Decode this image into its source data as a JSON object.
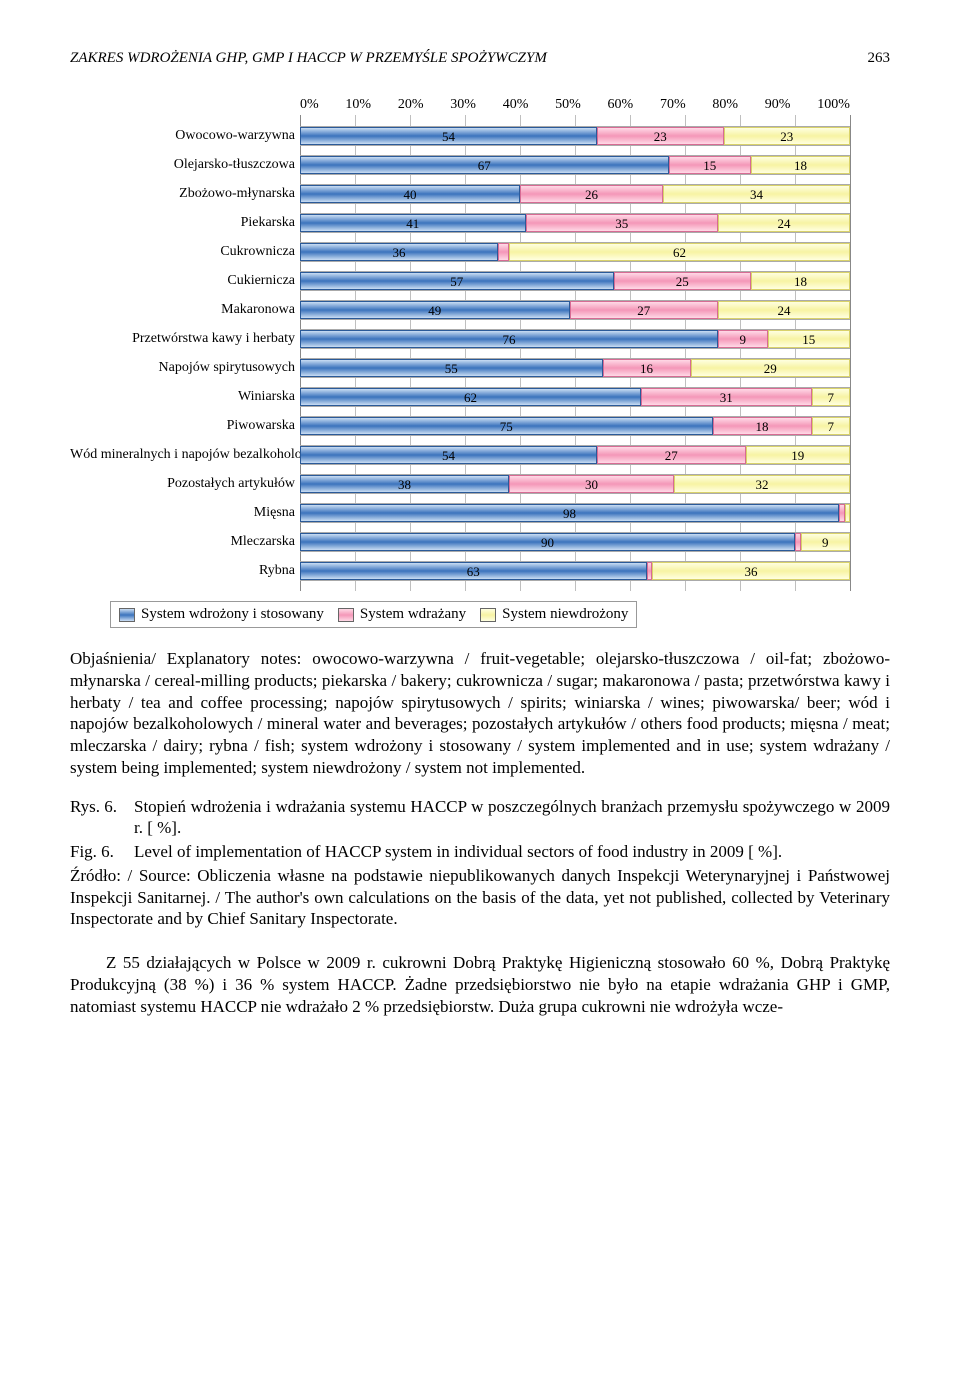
{
  "page": {
    "running_title": "ZAKRES WDROŻENIA GHP, GMP I HACCP W PRZEMYŚLE SPOŻYWCZYM",
    "page_number": "263"
  },
  "chart": {
    "type": "stacked-bar-horizontal",
    "x_ticks": [
      "0%",
      "10%",
      "20%",
      "30%",
      "40%",
      "50%",
      "60%",
      "70%",
      "80%",
      "90%",
      "100%"
    ],
    "series": [
      {
        "key": "blue",
        "label": "System wdrożony i stosowany"
      },
      {
        "key": "pink",
        "label": "System wdrażany"
      },
      {
        "key": "yellow",
        "label": "System niewdrożony"
      }
    ],
    "categories": [
      {
        "label": "Owocowo-warzywna",
        "v": [
          54,
          23,
          23
        ]
      },
      {
        "label": "Olejarsko-tłuszczowa",
        "v": [
          67,
          15,
          18
        ]
      },
      {
        "label": "Zbożowo-młynarska",
        "v": [
          40,
          26,
          34
        ]
      },
      {
        "label": "Piekarska",
        "v": [
          41,
          35,
          24
        ]
      },
      {
        "label": "Cukrownicza",
        "v": [
          36,
          2,
          62
        ]
      },
      {
        "label": "Cukiernicza",
        "v": [
          57,
          25,
          18
        ]
      },
      {
        "label": "Makaronowa",
        "v": [
          49,
          27,
          24
        ]
      },
      {
        "label": "Przetwórstwa kawy i herbaty",
        "v": [
          76,
          9,
          15
        ]
      },
      {
        "label": "Napojów spirytusowych",
        "v": [
          55,
          16,
          29
        ]
      },
      {
        "label": "Winiarska",
        "v": [
          62,
          31,
          7
        ]
      },
      {
        "label": "Piwowarska",
        "v": [
          75,
          18,
          7
        ]
      },
      {
        "label": "Wód mineralnych i napojów bezalkoholowych",
        "v": [
          54,
          27,
          19
        ]
      },
      {
        "label": "Pozostałych artykułów",
        "v": [
          38,
          30,
          32
        ]
      },
      {
        "label": "Mięsna",
        "v": [
          98,
          1,
          1
        ]
      },
      {
        "label": "Mleczarska",
        "v": [
          90,
          1,
          9
        ]
      },
      {
        "label": "Rybna",
        "v": [
          63,
          1,
          36
        ]
      }
    ],
    "colors": {
      "blue": "#3b73bd",
      "pink": "#f497b8",
      "yellow": "#f7f3a3"
    },
    "grid_color": "#bfbfbf",
    "background": "#ffffff"
  },
  "explanatory": "Objaśnienia/ Explanatory notes: owocowo-warzywna / fruit-vegetable; olejarsko-tłuszczowa / oil-fat; zbożowo-młynarska / cereal-milling products; piekarska / bakery; cukrownicza / sugar; makaronowa / pasta; przetwórstwa kawy i herbaty / tea and coffee processing; napojów spirytusowych / spirits; winiarska / wines; piwowarska/ beer; wód i napojów bezalkoholowych / mineral water and beverages; pozostałych artykułów / others food products; mięsna / meat; mleczarska / dairy; rybna / fish; system wdrożony i stosowany / system implemented and in use; system wdrażany / system being implemented; system niewdrożony / system not implemented.",
  "captions": {
    "rys_label": "Rys. 6.",
    "rys_text": "Stopień wdrożenia i wdrażania systemu HACCP w poszczególnych branżach przemysłu spożywczego w 2009 r. [ %].",
    "fig_label": "Fig. 6.",
    "fig_text": "Level of implementation of HACCP system in individual sectors of food industry in 2009 [ %].",
    "source": "Źródło: / Source: Obliczenia własne na podstawie niepublikowanych danych Inspekcji Weterynaryjnej i Państwowej Inspekcji Sanitarnej. / The author's own calculations on the basis of the data, yet not published, collected by Veterinary Inspectorate and by Chief Sanitary Inspectorate."
  },
  "body_para": "Z 55 działających w Polsce w 2009 r. cukrowni Dobrą Praktykę Higieniczną stosowało 60 %, Dobrą Praktykę Produkcyjną (38 %) i 36 % system HACCP. Żadne przedsiębiorstwo nie było na etapie wdrażania GHP i GMP, natomiast systemu HACCP nie wdrażało 2 % przedsiębiorstw. Duża grupa cukrowni nie wdrożyła wcze-"
}
